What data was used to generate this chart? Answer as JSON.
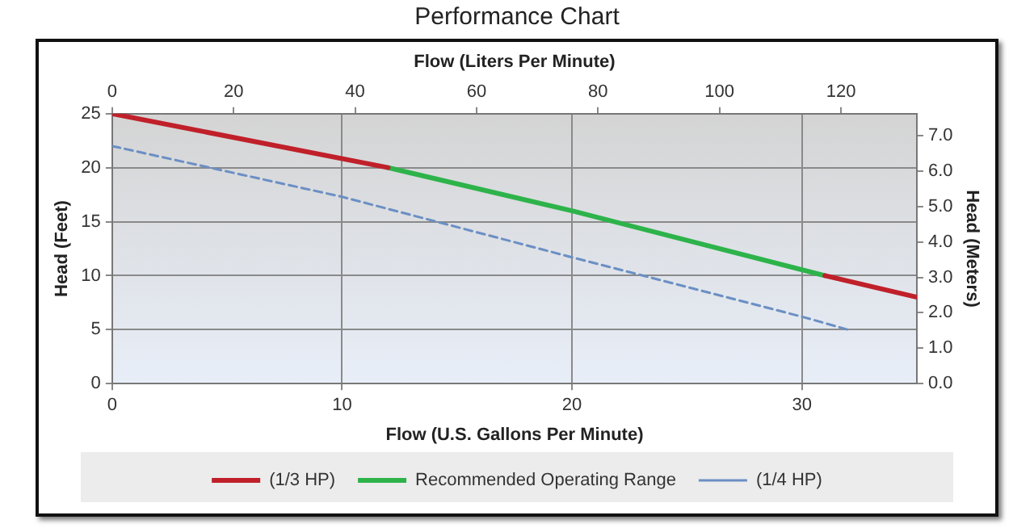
{
  "chart_data": {
    "type": "line",
    "title": "Performance Chart",
    "xlabel": "Flow (U.S. Gallons Per Minute)",
    "ylabel": "Head (Feet)",
    "x2label": "Flow (Liters Per Minute)",
    "y2label": "Head (Meters)",
    "xlim": [
      0,
      35
    ],
    "xticks": [
      0,
      10,
      20,
      30
    ],
    "ylim": [
      0,
      25
    ],
    "yticks": [
      0,
      5,
      10,
      15,
      20,
      25
    ],
    "x2lim": [
      0,
      132.5
    ],
    "x2ticks": [
      0,
      20,
      40,
      60,
      80,
      100,
      120
    ],
    "y2lim": [
      0,
      7.62
    ],
    "y2ticks": [
      {
        "value": 0,
        "label": "0.0"
      },
      {
        "value": 1,
        "label": "1.0"
      },
      {
        "value": 2,
        "label": "2.0"
      },
      {
        "value": 3,
        "label": "3.0"
      },
      {
        "value": 4,
        "label": "4.0"
      },
      {
        "value": 5,
        "label": "5.0"
      },
      {
        "value": 6,
        "label": "6.0"
      },
      {
        "value": 7,
        "label": "7.0"
      }
    ],
    "grid": true,
    "legend": "bottom",
    "marker": "none",
    "series": [
      {
        "name": "(1/3 HP)",
        "color": "#c0202a",
        "x": [
          0,
          12,
          20,
          31,
          35
        ],
        "values": [
          25,
          20,
          null,
          10,
          8
        ]
      },
      {
        "name": "Recommended Operating Range",
        "color": "#2db34a",
        "x": [
          12,
          20,
          31
        ],
        "values": [
          20,
          16,
          10
        ]
      },
      {
        "name": "(1/4 HP)",
        "color": "#6b8fc4",
        "line_style": "dashed",
        "x": [
          0,
          10,
          20,
          30,
          32
        ],
        "values": [
          22,
          17.3,
          11.7,
          6.2,
          5
        ]
      }
    ]
  }
}
